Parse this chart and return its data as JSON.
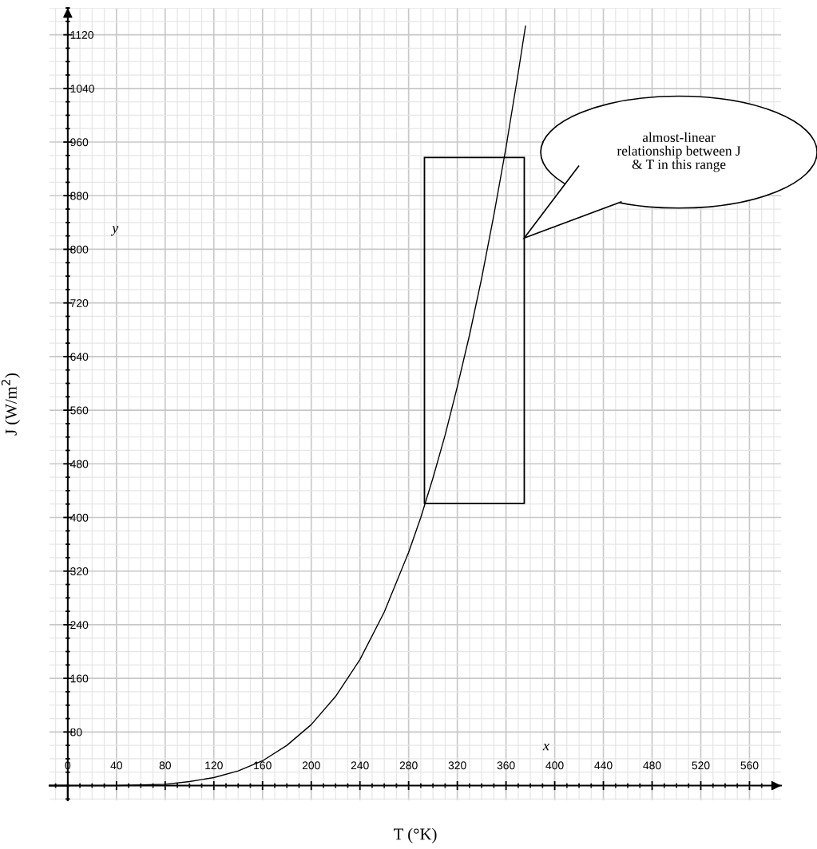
{
  "chart_data": {
    "type": "line",
    "xlabel": "T (°K)",
    "ylabel": "J (W/m$^{2}$)",
    "x": [
      0,
      40,
      60,
      80,
      100,
      120,
      140,
      160,
      180,
      200,
      220,
      240,
      260,
      280,
      290,
      300,
      310,
      320,
      330,
      340,
      350,
      360,
      370,
      376
    ],
    "series": [
      {
        "color": "#000000",
        "values": [
          0,
          0,
          1,
          2,
          6,
          12,
          22,
          37,
          60,
          91,
          133,
          188,
          259,
          348,
          400,
          459,
          523,
          595,
          672,
          757,
          851,
          952,
          1063,
          1133
        ]
      }
    ],
    "xlim": [
      -15,
      586
    ],
    "ylim": [
      -22,
      1160
    ],
    "xticks": [
      0,
      40,
      80,
      120,
      160,
      200,
      240,
      280,
      320,
      360,
      400,
      440,
      480,
      520,
      560
    ],
    "yticks": [
      80,
      160,
      240,
      320,
      400,
      480,
      560,
      640,
      720,
      800,
      880,
      960,
      1040,
      1120
    ],
    "grid": true,
    "legend": false,
    "marker": "none",
    "line_style": "solid",
    "annotations": [
      "almost-linear\nrelationship between J\n& T in this range",
      "x",
      "y"
    ]
  }
}
